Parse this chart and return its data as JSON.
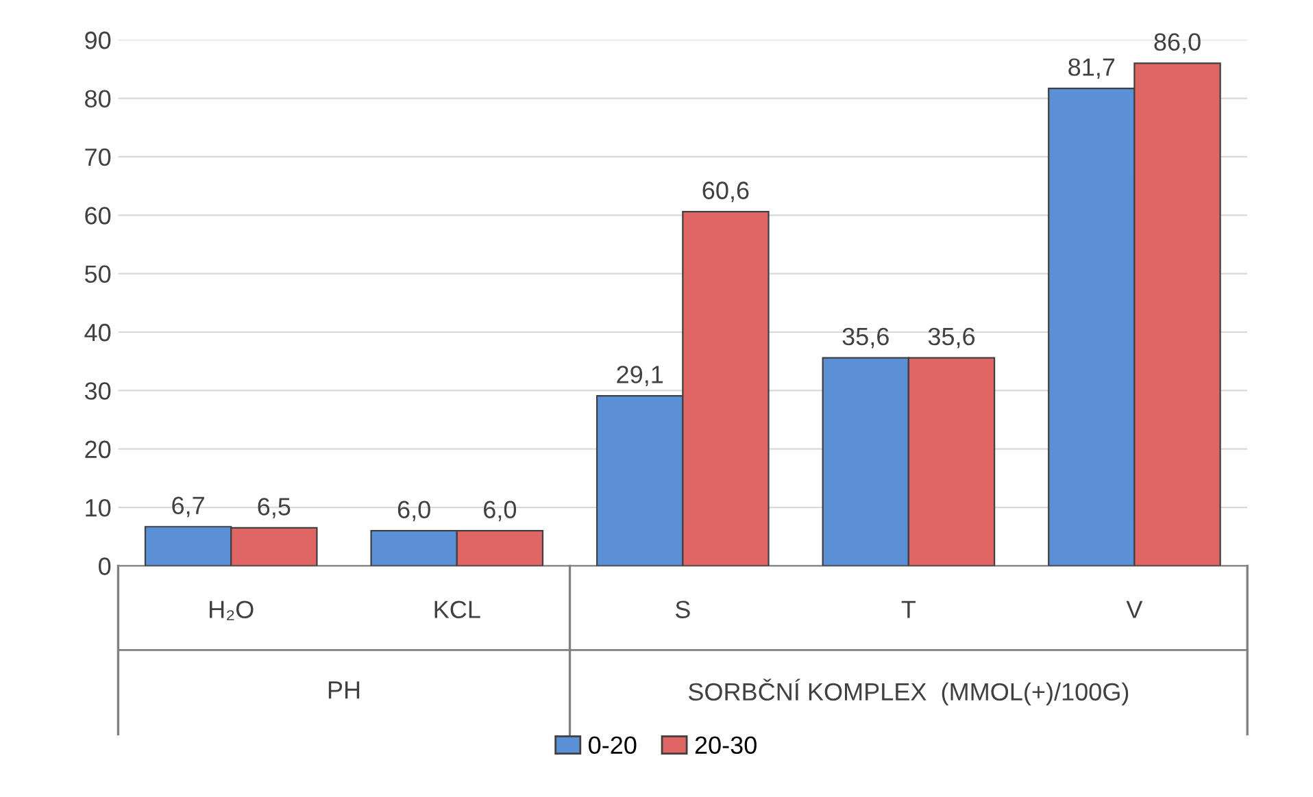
{
  "chart_data": {
    "type": "bar",
    "categories": [
      "H₂O",
      "KCL",
      "S",
      "T",
      "V"
    ],
    "series": [
      {
        "name": "0-20",
        "color": "#5b8fd6",
        "values": [
          6.7,
          6.0,
          29.1,
          35.6,
          81.7
        ],
        "value_labels": [
          "6,7",
          "6,0",
          "29,1",
          "35,6",
          "81,7"
        ]
      },
      {
        "name": "20-30",
        "color": "#e06666",
        "values": [
          6.5,
          6.0,
          60.6,
          35.6,
          86.0
        ],
        "value_labels": [
          "6,5",
          "6,0",
          "60,6",
          "35,6",
          "86,0"
        ]
      }
    ],
    "ylim": [
      0,
      90
    ],
    "yticks": [
      0,
      10,
      20,
      30,
      40,
      50,
      60,
      70,
      80,
      90
    ],
    "grid": "y",
    "legend": "bottom",
    "annotations": [
      "PH",
      "SORBČNÍ KOMPLEX  (MMOL(+)/100G)"
    ]
  }
}
